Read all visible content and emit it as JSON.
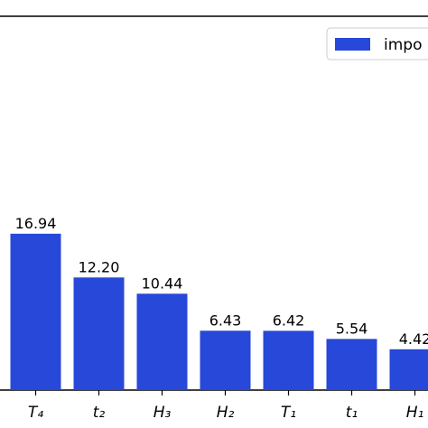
{
  "chart_data": {
    "type": "bar",
    "categories": [
      "T₄",
      "t₂",
      "H₃",
      "H₂",
      "T₁",
      "t₁",
      "H₁"
    ],
    "series": [
      {
        "name": "impo",
        "color": "#2748d8",
        "values": [
          16.94,
          12.2,
          10.44,
          6.43,
          6.42,
          5.54,
          4.42
        ],
        "value_labels": [
          "16.94",
          "12.20",
          "10.44",
          "6.43",
          "6.42",
          "5.54",
          "4.42"
        ]
      }
    ],
    "ylim": [
      0,
      40.5
    ]
  }
}
